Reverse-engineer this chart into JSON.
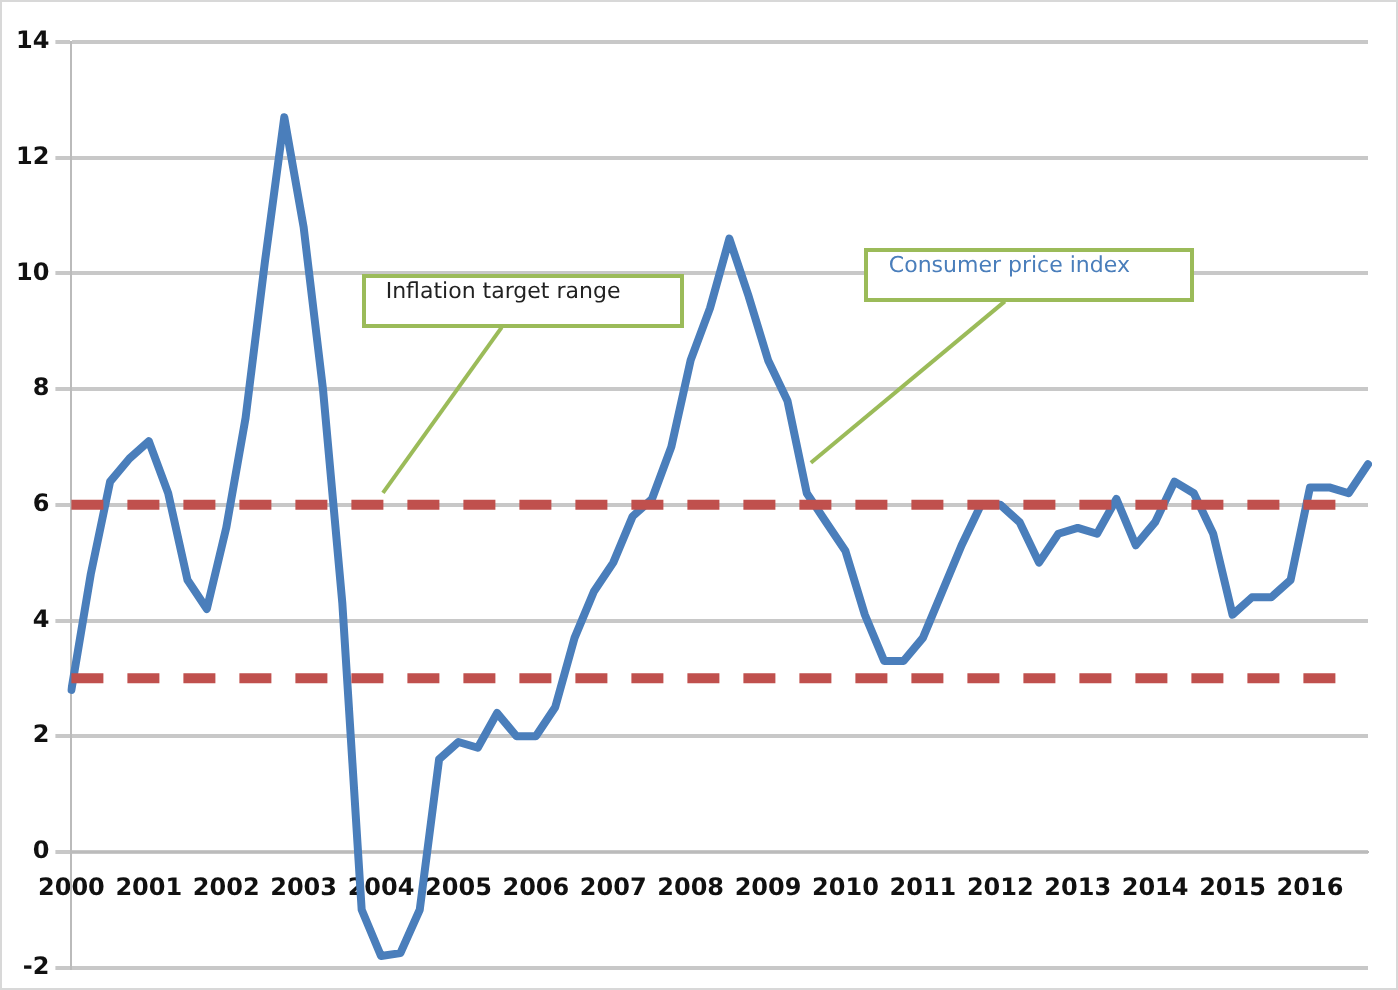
{
  "chart_data": {
    "type": "line",
    "categories": [
      "2000",
      null,
      null,
      null,
      "2001",
      null,
      null,
      null,
      "2002",
      null,
      null,
      null,
      "2003",
      null,
      null,
      null,
      "2004",
      null,
      null,
      null,
      "2005",
      null,
      null,
      null,
      "2006",
      null,
      null,
      null,
      "2007",
      null,
      null,
      null,
      "2008",
      null,
      null,
      null,
      "2009",
      null,
      null,
      null,
      "2010",
      null,
      null,
      null,
      "2011",
      null,
      null,
      null,
      "2012",
      null,
      null,
      null,
      "2013",
      null,
      null,
      null,
      "2014",
      null,
      null,
      null,
      "2015",
      null,
      null,
      null,
      "2016",
      null,
      null,
      null
    ],
    "series": [
      {
        "name": "Consumer price index",
        "color": "#4a7ebb",
        "values": [
          2.8,
          4.8,
          6.4,
          6.8,
          7.1,
          6.2,
          4.7,
          4.2,
          5.6,
          7.5,
          10.2,
          12.7,
          10.8,
          8.0,
          4.3,
          -1.0,
          -1.8,
          -1.75,
          -1.0,
          1.6,
          1.9,
          1.8,
          2.4,
          2.0,
          2.0,
          2.5,
          3.7,
          4.5,
          5.0,
          5.8,
          6.1,
          7.0,
          8.5,
          9.4,
          10.6,
          9.6,
          8.5,
          7.8,
          6.2,
          5.7,
          5.2,
          4.1,
          3.3,
          3.3,
          3.7,
          4.5,
          5.3,
          6.0,
          6.0,
          5.7,
          5.0,
          5.5,
          5.6,
          5.5,
          6.1,
          5.3,
          5.7,
          6.4,
          6.2,
          5.5,
          4.1,
          4.4,
          4.4,
          4.7,
          6.3,
          6.3,
          6.2,
          6.7
        ]
      }
    ],
    "ylim": [
      -2,
      14
    ],
    "yticks": [
      -2,
      0,
      2,
      4,
      6,
      8,
      10,
      12,
      14
    ],
    "ref_lines": [
      {
        "axis": "y",
        "value": 6,
        "label": "Inflation target range",
        "color": "#c0504d",
        "line_style": "dashed"
      },
      {
        "axis": "y",
        "value": 3,
        "color": "#c0504d",
        "line_style": "dashed"
      }
    ],
    "grid": "y",
    "legend": false,
    "marker": "none",
    "line_style": "solid"
  }
}
